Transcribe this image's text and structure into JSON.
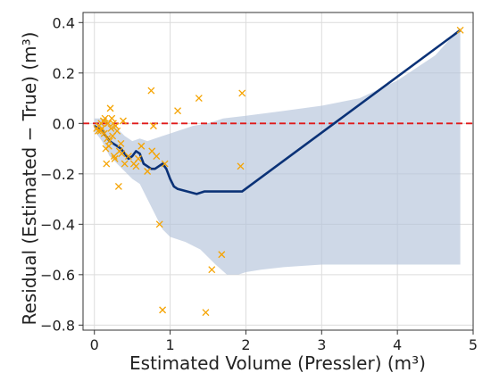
{
  "chart_data": {
    "type": "scatter",
    "title": "",
    "xlabel": "Estimated Volume (Pressler) (m³)",
    "ylabel": "Residual (Estimated − True) (m³)",
    "xlim": [
      -0.15,
      5.0
    ],
    "ylim": [
      -0.82,
      0.44
    ],
    "x_ticks": [
      0,
      1,
      2,
      3,
      4,
      5
    ],
    "y_ticks": [
      0.4,
      0.2,
      0.0,
      -0.2,
      -0.4,
      -0.6,
      -0.8
    ],
    "x_tick_labels": [
      "0",
      "1",
      "2",
      "3",
      "4",
      "5"
    ],
    "y_tick_labels": [
      "0.4",
      "0.2",
      "0.0",
      "−0.2",
      "−0.4",
      "−0.6",
      "−0.8"
    ],
    "grid": true,
    "legend": "none",
    "colors": {
      "points": "#f5a300",
      "trend": "#0b3277",
      "band": "#b3c3da",
      "zero_line": "#e01a1a",
      "axes": "#333333",
      "grid": "#dcdcdc"
    },
    "series": [
      {
        "kind": "scatter",
        "marker": "x",
        "points": [
          [
            0.03,
            -0.02
          ],
          [
            0.05,
            -0.03
          ],
          [
            0.06,
            -0.01
          ],
          [
            0.08,
            -0.03
          ],
          [
            0.09,
            0.0
          ],
          [
            0.1,
            -0.02
          ],
          [
            0.12,
            0.01
          ],
          [
            0.13,
            -0.04
          ],
          [
            0.14,
            0.02
          ],
          [
            0.15,
            -0.1
          ],
          [
            0.16,
            -0.16
          ],
          [
            0.17,
            -0.06
          ],
          [
            0.18,
            0.0
          ],
          [
            0.19,
            -0.09
          ],
          [
            0.2,
            -0.07
          ],
          [
            0.21,
            0.06
          ],
          [
            0.22,
            -0.02
          ],
          [
            0.23,
            0.02
          ],
          [
            0.24,
            -0.05
          ],
          [
            0.25,
            0.0
          ],
          [
            0.26,
            -0.13
          ],
          [
            0.27,
            -0.14
          ],
          [
            0.28,
            -0.01
          ],
          [
            0.3,
            -0.03
          ],
          [
            0.32,
            -0.25
          ],
          [
            0.33,
            -0.11
          ],
          [
            0.35,
            -0.08
          ],
          [
            0.36,
            -0.12
          ],
          [
            0.38,
            0.01
          ],
          [
            0.4,
            -0.16
          ],
          [
            0.45,
            -0.13
          ],
          [
            0.52,
            -0.16
          ],
          [
            0.55,
            -0.17
          ],
          [
            0.58,
            -0.14
          ],
          [
            0.62,
            -0.09
          ],
          [
            0.7,
            -0.19
          ],
          [
            0.75,
            0.13
          ],
          [
            0.76,
            -0.11
          ],
          [
            0.78,
            -0.01
          ],
          [
            0.82,
            -0.13
          ],
          [
            0.86,
            -0.4
          ],
          [
            0.9,
            -0.74
          ],
          [
            0.93,
            -0.16
          ],
          [
            1.1,
            0.05
          ],
          [
            1.38,
            0.1
          ],
          [
            1.47,
            -0.75
          ],
          [
            1.55,
            -0.58
          ],
          [
            1.68,
            -0.52
          ],
          [
            1.93,
            -0.17
          ],
          [
            1.95,
            0.12
          ],
          [
            4.83,
            0.37
          ]
        ]
      },
      {
        "kind": "line",
        "points": [
          [
            0.0,
            -0.01
          ],
          [
            0.05,
            -0.02
          ],
          [
            0.1,
            -0.03
          ],
          [
            0.15,
            -0.05
          ],
          [
            0.2,
            -0.07
          ],
          [
            0.25,
            -0.08
          ],
          [
            0.3,
            -0.09
          ],
          [
            0.35,
            -0.1
          ],
          [
            0.4,
            -0.12
          ],
          [
            0.45,
            -0.14
          ],
          [
            0.5,
            -0.13
          ],
          [
            0.55,
            -0.11
          ],
          [
            0.6,
            -0.12
          ],
          [
            0.65,
            -0.16
          ],
          [
            0.7,
            -0.17
          ],
          [
            0.75,
            -0.18
          ],
          [
            0.8,
            -0.18
          ],
          [
            0.85,
            -0.17
          ],
          [
            0.9,
            -0.16
          ],
          [
            0.95,
            -0.18
          ],
          [
            1.0,
            -0.22
          ],
          [
            1.05,
            -0.25
          ],
          [
            1.1,
            -0.26
          ],
          [
            1.35,
            -0.28
          ],
          [
            1.45,
            -0.27
          ],
          [
            1.95,
            -0.27
          ],
          [
            4.83,
            0.37
          ]
        ]
      },
      {
        "kind": "band",
        "upper": [
          [
            0.0,
            0.02
          ],
          [
            0.1,
            0.02
          ],
          [
            0.2,
            0.01
          ],
          [
            0.3,
            -0.02
          ],
          [
            0.4,
            -0.05
          ],
          [
            0.5,
            -0.07
          ],
          [
            0.6,
            -0.06
          ],
          [
            0.7,
            -0.07
          ],
          [
            0.8,
            -0.06
          ],
          [
            0.9,
            -0.05
          ],
          [
            1.0,
            -0.04
          ],
          [
            1.1,
            -0.03
          ],
          [
            1.2,
            -0.02
          ],
          [
            1.3,
            -0.01
          ],
          [
            1.5,
            0.0
          ],
          [
            1.7,
            0.02
          ],
          [
            2.0,
            0.03
          ],
          [
            2.5,
            0.05
          ],
          [
            3.0,
            0.07
          ],
          [
            3.5,
            0.1
          ],
          [
            4.0,
            0.17
          ],
          [
            4.5,
            0.27
          ],
          [
            4.83,
            0.38
          ]
        ],
        "lower": [
          [
            0.0,
            -0.03
          ],
          [
            0.1,
            -0.07
          ],
          [
            0.2,
            -0.13
          ],
          [
            0.3,
            -0.16
          ],
          [
            0.4,
            -0.19
          ],
          [
            0.5,
            -0.22
          ],
          [
            0.6,
            -0.24
          ],
          [
            0.7,
            -0.3
          ],
          [
            0.8,
            -0.36
          ],
          [
            0.9,
            -0.42
          ],
          [
            1.0,
            -0.45
          ],
          [
            1.2,
            -0.47
          ],
          [
            1.4,
            -0.5
          ],
          [
            1.6,
            -0.56
          ],
          [
            1.75,
            -0.6
          ],
          [
            1.9,
            -0.6
          ],
          [
            2.0,
            -0.59
          ],
          [
            2.2,
            -0.58
          ],
          [
            2.5,
            -0.57
          ],
          [
            3.0,
            -0.56
          ],
          [
            4.0,
            -0.56
          ],
          [
            4.83,
            -0.56
          ]
        ]
      },
      {
        "kind": "hline",
        "y": 0.0,
        "style": "dashed"
      }
    ]
  }
}
